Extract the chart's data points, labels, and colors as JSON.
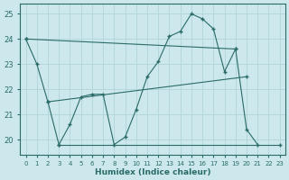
{
  "xlabel": "Humidex (Indice chaleur)",
  "bg_color": "#cce8ec",
  "grid_color": "#b0d4d8",
  "line_color": "#2a6b68",
  "xlim": [
    -0.5,
    23.5
  ],
  "ylim": [
    19.4,
    25.4
  ],
  "yticks": [
    20,
    21,
    22,
    23,
    24,
    25
  ],
  "xticks": [
    0,
    1,
    2,
    3,
    4,
    5,
    6,
    7,
    8,
    9,
    10,
    11,
    12,
    13,
    14,
    15,
    16,
    17,
    18,
    19,
    20,
    21,
    22,
    23
  ],
  "lines": [
    {
      "x": [
        0,
        1,
        2,
        3,
        4,
        5,
        6,
        7,
        8,
        9,
        10,
        11,
        12,
        13,
        14,
        15,
        16,
        17,
        18,
        19,
        20,
        21
      ],
      "y": [
        24.0,
        23.0,
        21.5,
        19.8,
        20.6,
        21.7,
        21.8,
        21.8,
        19.8,
        20.1,
        21.2,
        22.5,
        23.1,
        24.1,
        24.3,
        25.0,
        24.8,
        24.4,
        22.7,
        23.6,
        20.4,
        19.8
      ],
      "has_markers": true
    },
    {
      "x": [
        3,
        23
      ],
      "y": [
        19.8,
        19.8
      ],
      "has_markers": true
    },
    {
      "x": [
        0,
        19
      ],
      "y": [
        24.0,
        23.6
      ],
      "has_markers": true
    },
    {
      "comment": "lower diagonal - from x=2,y=21.5 to x=20,y=22.5",
      "x": [
        2,
        20
      ],
      "y": [
        21.5,
        22.5
      ],
      "has_markers": true
    }
  ]
}
